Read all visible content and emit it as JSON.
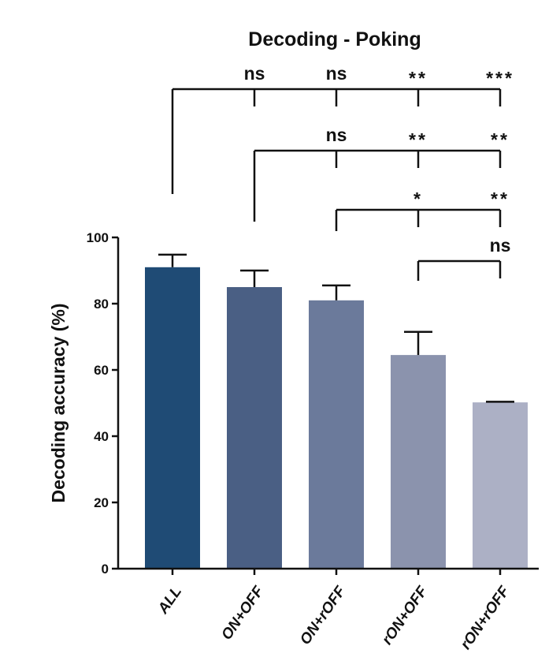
{
  "chart_data": {
    "type": "bar",
    "title": "Decoding - Poking",
    "xlabel": "",
    "ylabel": "Decoding accuracy (%)",
    "ylim": [
      0,
      100
    ],
    "yticks": [
      "0",
      "20",
      "40",
      "60",
      "80",
      "100"
    ],
    "categories": [
      "ALL",
      "ON+OFF",
      "ON+rOFF",
      "rON+OFF",
      "rON+rOFF"
    ],
    "values": [
      91,
      85,
      81,
      64.5,
      50.2
    ],
    "errors": [
      3.8,
      5,
      4.5,
      7,
      0.2
    ],
    "colors": [
      "#1f4b75",
      "#4a5f84",
      "#6b7a9b",
      "#8b93ad",
      "#acb0c5"
    ],
    "comparisons": [
      {
        "from": "ALL",
        "labels": [
          "ns",
          "ns",
          "**",
          "***"
        ]
      },
      {
        "from": "ON+OFF",
        "labels": [
          "ns",
          "**",
          "**"
        ]
      },
      {
        "from": "ON+rOFF",
        "labels": [
          "*",
          "**"
        ]
      },
      {
        "from": "rON+OFF",
        "labels": [
          "ns"
        ]
      }
    ],
    "grid": false,
    "legend": "none"
  }
}
